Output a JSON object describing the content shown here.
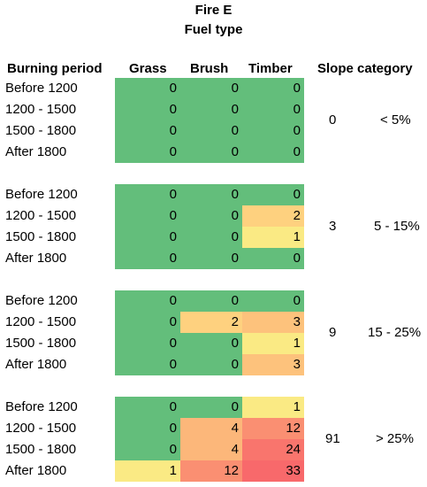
{
  "title": "Fire E",
  "subtitle": "Fuel type",
  "headers": {
    "period": "Burning period",
    "grass": "Grass",
    "brush": "Brush",
    "timber": "Timber",
    "slope": "Slope category"
  },
  "groups": [
    {
      "slope_value": "0",
      "slope_range": "< 5%",
      "rows": [
        {
          "period": "Before 1200",
          "grass": "0",
          "brush": "0",
          "timber": "0"
        },
        {
          "period": "1200 - 1500",
          "grass": "0",
          "brush": "0",
          "timber": "0"
        },
        {
          "period": "1500 - 1800",
          "grass": "0",
          "brush": "0",
          "timber": "0"
        },
        {
          "period": "After 1800",
          "grass": "0",
          "brush": "0",
          "timber": "0"
        }
      ]
    },
    {
      "slope_value": "3",
      "slope_range": "5 - 15%",
      "rows": [
        {
          "period": "Before 1200",
          "grass": "0",
          "brush": "0",
          "timber": "0"
        },
        {
          "period": "1200 - 1500",
          "grass": "0",
          "brush": "0",
          "timber": "2"
        },
        {
          "period": "1500 - 1800",
          "grass": "0",
          "brush": "0",
          "timber": "1"
        },
        {
          "period": "After 1800",
          "grass": "0",
          "brush": "0",
          "timber": "0"
        }
      ]
    },
    {
      "slope_value": "9",
      "slope_range": "15 - 25%",
      "rows": [
        {
          "period": "Before 1200",
          "grass": "0",
          "brush": "0",
          "timber": "0"
        },
        {
          "period": "1200 - 1500",
          "grass": "0",
          "brush": "2",
          "timber": "3"
        },
        {
          "period": "1500 - 1800",
          "grass": "0",
          "brush": "0",
          "timber": "1"
        },
        {
          "period": "After 1800",
          "grass": "0",
          "brush": "0",
          "timber": "3"
        }
      ]
    },
    {
      "slope_value": "91",
      "slope_range": "> 25%",
      "rows": [
        {
          "period": "Before 1200",
          "grass": "0",
          "brush": "0",
          "timber": "1"
        },
        {
          "period": "1200 - 1500",
          "grass": "0",
          "brush": "4",
          "timber": "12"
        },
        {
          "period": "1500 - 1800",
          "grass": "0",
          "brush": "4",
          "timber": "24"
        },
        {
          "period": "After 1800",
          "grass": "1",
          "brush": "12",
          "timber": "33"
        }
      ]
    }
  ],
  "colors": {
    "scale": [
      "#63be7b",
      "#ffeb84",
      "#f8696b"
    ]
  }
}
